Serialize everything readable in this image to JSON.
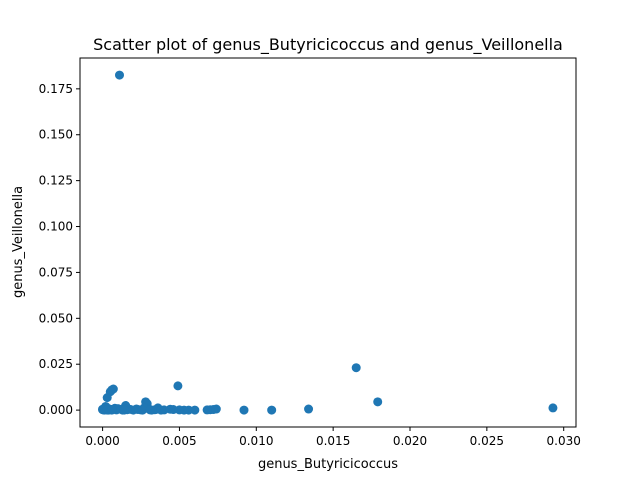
{
  "chart_data": {
    "type": "scatter",
    "title": "Scatter plot of genus_Butyricicoccus and genus_Veillonella",
    "xlabel": "genus_Butyricicoccus",
    "ylabel": "genus_Veillonella",
    "xlim": [
      -0.00147,
      0.0308
    ],
    "ylim": [
      -0.0092,
      0.1918
    ],
    "xticks": [
      0.0,
      0.005,
      0.01,
      0.015,
      0.02,
      0.025,
      0.03
    ],
    "xtick_labels": [
      "0.000",
      "0.005",
      "0.010",
      "0.015",
      "0.020",
      "0.025",
      "0.030"
    ],
    "yticks": [
      0.0,
      0.025,
      0.05,
      0.075,
      0.1,
      0.125,
      0.15,
      0.175
    ],
    "ytick_labels": [
      "0.000",
      "0.025",
      "0.050",
      "0.075",
      "0.100",
      "0.125",
      "0.150",
      "0.175"
    ],
    "grid": false,
    "color": "#1f77b4",
    "series": [
      {
        "x": [
          0.0011,
          0.0165,
          0.0049,
          0.0179,
          0.0007,
          0.0006,
          0.0005,
          0.0003,
          0.0028,
          0.0029,
          0.0293,
          0.0134,
          0.011,
          0.0092,
          0.0074,
          0.0072,
          0.007,
          0.0068,
          0.006,
          0.0056,
          0.0053,
          0.005,
          0.0046,
          0.0044,
          0.004,
          0.0036,
          0.0035,
          0.0034,
          0.0032,
          0.003,
          0.0027,
          0.0025,
          0.0023,
          0.0022,
          0.002,
          0.0018,
          0.0016,
          0.0015,
          0.0014,
          0.0013,
          0.0012,
          0.001,
          0.0009,
          0.0008,
          0.0006,
          0.0005,
          0.0004,
          0.0003,
          0.0002,
          0.0002,
          0.0001,
          0.0001,
          0.0,
          0.0,
          0.0003,
          0.0006,
          0.0014,
          0.0026,
          0.0031,
          0.0038
        ],
        "y": [
          0.1825,
          0.0231,
          0.0132,
          0.0045,
          0.0115,
          0.011,
          0.01,
          0.0068,
          0.0045,
          0.0035,
          0.0012,
          0.0006,
          0.0,
          0.0,
          0.0006,
          0.0003,
          0.0002,
          0.0001,
          0.0,
          0.0,
          0.0,
          0.0001,
          0.0003,
          0.0005,
          0.0001,
          0.0012,
          0.0004,
          0.0002,
          0.0,
          0.0007,
          0.0012,
          0.0001,
          0.0003,
          0.0006,
          0.0,
          0.0004,
          0.0002,
          0.0025,
          0.001,
          0.0,
          0.0004,
          0.0008,
          0.0001,
          0.001,
          0.0003,
          0.0005,
          0.0,
          0.0012,
          0.002,
          0.0002,
          0.0008,
          0.0,
          0.0005,
          0.0002,
          0.0,
          0.0,
          0.0,
          0.0,
          0.0001,
          0.0
        ]
      }
    ]
  }
}
